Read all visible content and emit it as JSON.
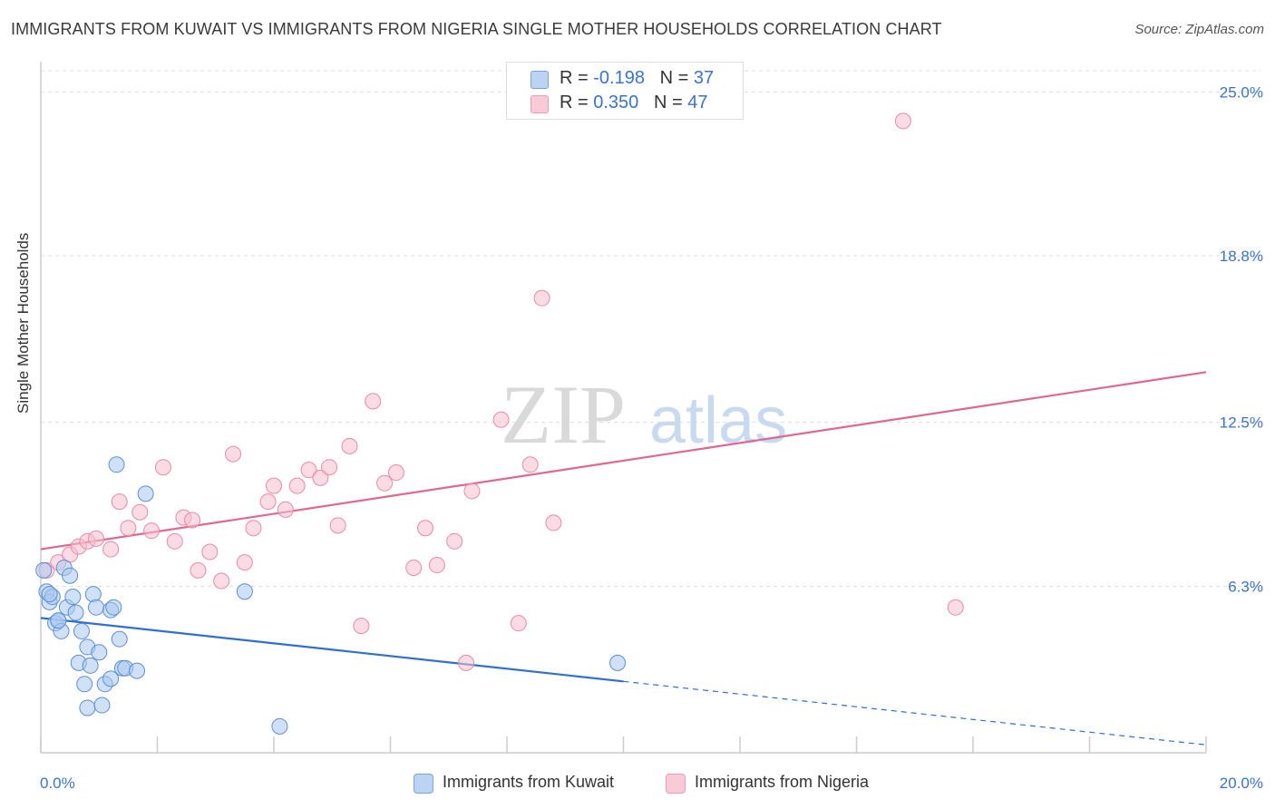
{
  "title": "IMMIGRANTS FROM KUWAIT VS IMMIGRANTS FROM NIGERIA SINGLE MOTHER HOUSEHOLDS CORRELATION CHART",
  "source": "Source: ZipAtlas.com",
  "watermark": {
    "zip": "ZIP",
    "atlas": "atlas"
  },
  "legend": {
    "kuwait": {
      "r_label": "R =",
      "r_value": "-0.198",
      "n_label": "N =",
      "n_value": "37"
    },
    "nigeria": {
      "r_label": "R =",
      "r_value": "0.350",
      "n_label": "N =",
      "n_value": "47"
    }
  },
  "bottom_legend": {
    "kuwait": "Immigrants from Kuwait",
    "nigeria": "Immigrants from Nigeria"
  },
  "colors": {
    "kuwait_fill": "#a9c8f0",
    "kuwait_stroke": "#5b8fd4",
    "kuwait_line": "#2f6fd0",
    "nigeria_fill": "#f7bfd0",
    "nigeria_stroke": "#e98aa8",
    "nigeria_line": "#e0678f",
    "axis_text": "#3b73c9",
    "grid": "#dddddd"
  },
  "chart_data": {
    "type": "scatter",
    "title": "IMMIGRANTS FROM KUWAIT VS IMMIGRANTS FROM NIGERIA SINGLE MOTHER HOUSEHOLDS CORRELATION CHART",
    "xlabel": "",
    "ylabel": "Single Mother Households",
    "xlim": [
      0,
      20
    ],
    "ylim": [
      0,
      25.8
    ],
    "x_tick_labels": [
      "0.0%",
      "20.0%"
    ],
    "y_ticks": [
      6.3,
      12.5,
      18.8,
      25.0
    ],
    "y_tick_labels": [
      "6.3%",
      "12.5%",
      "18.8%",
      "25.0%"
    ],
    "grid": true,
    "series": [
      {
        "name": "Immigrants from Kuwait",
        "r": -0.198,
        "n": 37,
        "trend": {
          "x0": 0,
          "y0": 5.1,
          "x1": 10.0,
          "y1": 2.7,
          "dash_to_x": 20.0,
          "dash_to_y": 0.3
        },
        "points": [
          [
            0.05,
            6.9
          ],
          [
            0.1,
            6.1
          ],
          [
            0.15,
            5.7
          ],
          [
            0.2,
            5.9
          ],
          [
            0.25,
            4.9
          ],
          [
            0.3,
            5.0
          ],
          [
            0.35,
            4.6
          ],
          [
            0.4,
            7.0
          ],
          [
            0.45,
            5.5
          ],
          [
            0.5,
            6.7
          ],
          [
            0.55,
            5.9
          ],
          [
            0.6,
            5.3
          ],
          [
            0.65,
            3.4
          ],
          [
            0.7,
            4.6
          ],
          [
            0.75,
            2.6
          ],
          [
            0.8,
            1.7
          ],
          [
            0.8,
            4.0
          ],
          [
            0.85,
            3.3
          ],
          [
            0.9,
            6.0
          ],
          [
            0.95,
            5.5
          ],
          [
            1.0,
            3.8
          ],
          [
            1.05,
            1.8
          ],
          [
            1.1,
            2.6
          ],
          [
            1.2,
            2.8
          ],
          [
            1.2,
            5.4
          ],
          [
            1.25,
            5.5
          ],
          [
            1.35,
            4.3
          ],
          [
            1.4,
            3.2
          ],
          [
            1.45,
            3.2
          ],
          [
            1.65,
            3.1
          ],
          [
            1.3,
            10.9
          ],
          [
            1.8,
            9.8
          ],
          [
            3.5,
            6.1
          ],
          [
            4.1,
            1.0
          ],
          [
            9.9,
            3.4
          ],
          [
            0.15,
            6.0
          ],
          [
            0.3,
            5.0
          ]
        ]
      },
      {
        "name": "Immigrants from Nigeria",
        "r": 0.35,
        "n": 47,
        "trend": {
          "x0": 0,
          "y0": 7.7,
          "x1": 20.0,
          "y1": 14.4
        },
        "points": [
          [
            0.1,
            6.9
          ],
          [
            0.3,
            7.2
          ],
          [
            0.5,
            7.5
          ],
          [
            0.65,
            7.8
          ],
          [
            0.8,
            8.0
          ],
          [
            0.95,
            8.1
          ],
          [
            1.2,
            7.7
          ],
          [
            1.35,
            9.5
          ],
          [
            1.5,
            8.5
          ],
          [
            1.7,
            9.1
          ],
          [
            1.9,
            8.4
          ],
          [
            2.1,
            10.8
          ],
          [
            2.3,
            8.0
          ],
          [
            2.45,
            8.9
          ],
          [
            2.6,
            8.8
          ],
          [
            2.7,
            6.9
          ],
          [
            2.9,
            7.6
          ],
          [
            3.1,
            6.5
          ],
          [
            3.3,
            11.3
          ],
          [
            3.5,
            7.2
          ],
          [
            3.65,
            8.5
          ],
          [
            3.9,
            9.5
          ],
          [
            4.0,
            10.1
          ],
          [
            4.2,
            9.2
          ],
          [
            4.4,
            10.1
          ],
          [
            4.6,
            10.7
          ],
          [
            4.8,
            10.4
          ],
          [
            4.95,
            10.8
          ],
          [
            5.1,
            8.6
          ],
          [
            5.3,
            11.6
          ],
          [
            5.5,
            4.8
          ],
          [
            5.7,
            13.3
          ],
          [
            5.9,
            10.2
          ],
          [
            6.1,
            10.6
          ],
          [
            6.4,
            7.0
          ],
          [
            6.6,
            8.5
          ],
          [
            6.8,
            7.1
          ],
          [
            7.1,
            8.0
          ],
          [
            7.3,
            3.4
          ],
          [
            7.4,
            9.9
          ],
          [
            7.9,
            12.6
          ],
          [
            8.2,
            4.9
          ],
          [
            8.4,
            10.9
          ],
          [
            8.6,
            17.2
          ],
          [
            8.8,
            8.7
          ],
          [
            15.7,
            5.5
          ],
          [
            14.8,
            23.9
          ]
        ]
      }
    ]
  }
}
